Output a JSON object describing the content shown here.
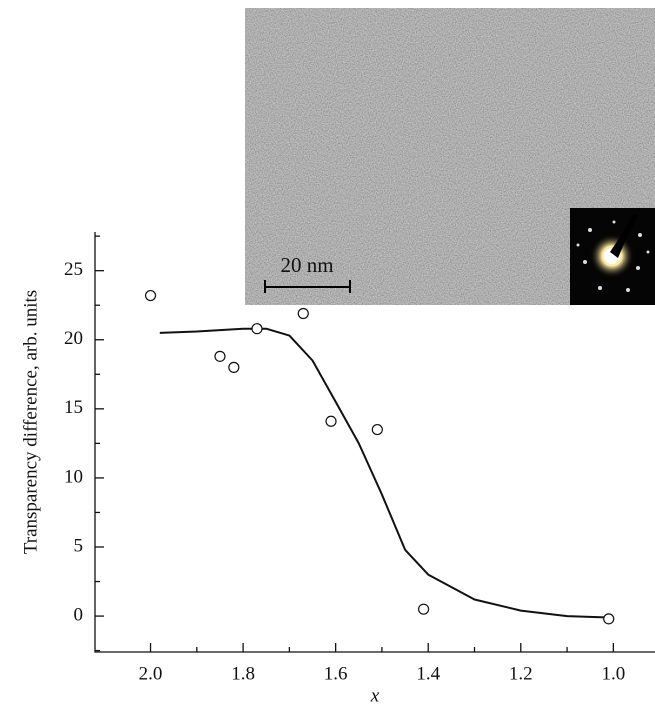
{
  "chart_data": {
    "type": "scatter",
    "xlabel": "x",
    "ylabel": "Transparency difference, arb. units",
    "xlim": [
      2.12,
      0.91
    ],
    "ylim": [
      -2.6,
      27.8
    ],
    "xticks": [
      {
        "value": 2.0,
        "label": "2.0"
      },
      {
        "value": 1.8,
        "label": "1.8"
      },
      {
        "value": 1.6,
        "label": "1.6"
      },
      {
        "value": 1.4,
        "label": "1.4"
      },
      {
        "value": 1.2,
        "label": "1.2"
      },
      {
        "value": 1.0,
        "label": "1.0"
      }
    ],
    "yticks": [
      0,
      5,
      10,
      15,
      20,
      25
    ],
    "series": [
      {
        "mode": "markers",
        "color": "#111111",
        "x": [
          2.0,
          1.85,
          1.82,
          1.77,
          1.67,
          1.61,
          1.51,
          1.41,
          1.01
        ],
        "values": [
          23.2,
          18.8,
          18.0,
          20.8,
          21.9,
          14.1,
          13.5,
          0.5,
          -0.2
        ]
      },
      {
        "mode": "line",
        "color": "#111111",
        "x": [
          1.98,
          1.9,
          1.8,
          1.75,
          1.7,
          1.65,
          1.6,
          1.55,
          1.5,
          1.45,
          1.4,
          1.3,
          1.2,
          1.1,
          1.01
        ],
        "values": [
          20.5,
          20.6,
          20.8,
          20.8,
          20.3,
          18.5,
          15.5,
          12.5,
          8.8,
          4.8,
          3.0,
          1.2,
          0.4,
          0.0,
          -0.1
        ]
      }
    ]
  },
  "inset": {
    "scale_bar": "20 nm"
  }
}
